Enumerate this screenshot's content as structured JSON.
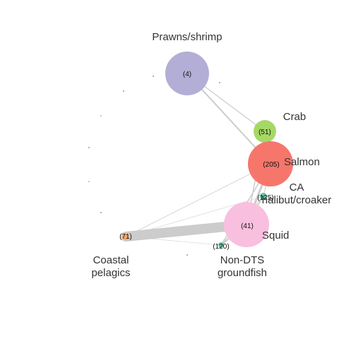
{
  "colors": {
    "background": "#ffffff",
    "edge": "#cccccc",
    "label": "#333333",
    "prawns": "#b3aed6",
    "crab": "#a6d865",
    "salmon": "#f6766c",
    "halibut": "#66c2a4",
    "squid": "#f9bfde",
    "groundfish": "#66c2a4",
    "pelagics": "#f7a965",
    "minor_dot": "#9a9a9a",
    "minor_dot_orange": "#f7a965"
  },
  "nodes": [
    {
      "id": "prawns",
      "name": "Prawns/shrimp",
      "count": "(4)"
    },
    {
      "id": "crab",
      "name": "Crab",
      "count": "(51)"
    },
    {
      "id": "salmon",
      "name": "Salmon",
      "count": "(205)"
    },
    {
      "id": "halibut",
      "name": "CA\nhalibut/croaker",
      "count": "(125)"
    },
    {
      "id": "squid",
      "name": "Squid",
      "count": "(41)"
    },
    {
      "id": "groundfish",
      "name": "Non-DTS\ngroundfish",
      "count": "(120)"
    },
    {
      "id": "pelagics",
      "name": "Coastal\npelagics",
      "count": "(71)"
    }
  ],
  "edges": [
    {
      "from": "prawns",
      "to": "salmon",
      "weight": 2
    },
    {
      "from": "prawns",
      "to": "crab",
      "weight": 1.2
    },
    {
      "from": "crab",
      "to": "salmon",
      "weight": 1.5
    },
    {
      "from": "salmon",
      "to": "squid",
      "weight": 3
    },
    {
      "from": "salmon",
      "to": "groundfish",
      "weight": 1.5
    },
    {
      "from": "salmon",
      "to": "halibut",
      "weight": 1
    },
    {
      "from": "salmon",
      "to": "pelagics",
      "weight": 0.8
    },
    {
      "from": "crab",
      "to": "squid",
      "weight": 1.5
    },
    {
      "from": "halibut",
      "to": "squid",
      "weight": 1.5
    },
    {
      "from": "halibut",
      "to": "groundfish",
      "weight": 1
    },
    {
      "from": "squid",
      "to": "groundfish",
      "weight": 2
    },
    {
      "from": "pelagics",
      "to": "squid",
      "weight": 14
    },
    {
      "from": "pelagics",
      "to": "halibut",
      "weight": 0.6
    },
    {
      "from": "pelagics",
      "to": "groundfish",
      "weight": 0.6
    }
  ]
}
